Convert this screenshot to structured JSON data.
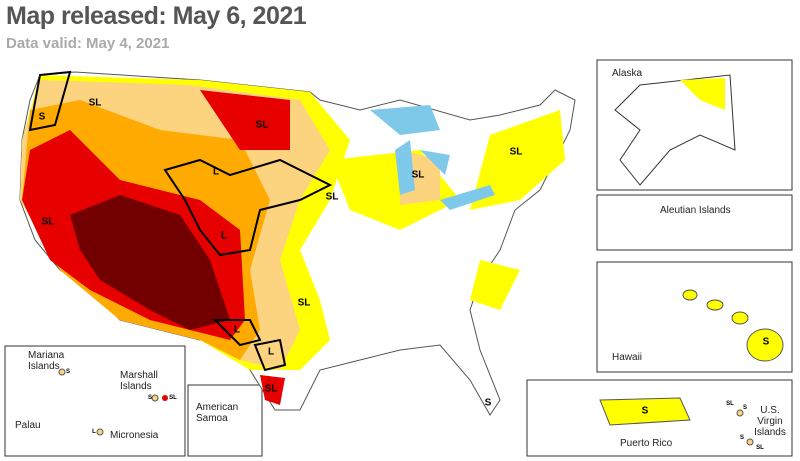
{
  "header": {
    "title": "Map released: May 6, 2021",
    "subtitle": "Data valid: May 4, 2021"
  },
  "map_labels": [
    "SL",
    "S",
    "SL",
    "L",
    "L",
    "SL",
    "SL",
    "SL",
    "SL",
    "L",
    "L",
    "SL",
    "S",
    "SL"
  ],
  "insets": {
    "alaska": "Alaska",
    "aleutian": "Aleutian Islands",
    "hawaii": "Hawaii",
    "hawaii_label": "S",
    "puerto_rico": "Puerto Rico",
    "puerto_rico_label": "S",
    "virgin_islands": "U.S. Virgin Islands",
    "virgin_labels": [
      "SL",
      "S",
      "S",
      "SL"
    ],
    "mariana": "Mariana Islands",
    "marshall": "Marshall Islands",
    "palau": "Palau",
    "micronesia": "Micronesia",
    "pacific_labels": [
      "S",
      "S",
      "SL",
      "L"
    ],
    "samoa": "American Samoa"
  }
}
